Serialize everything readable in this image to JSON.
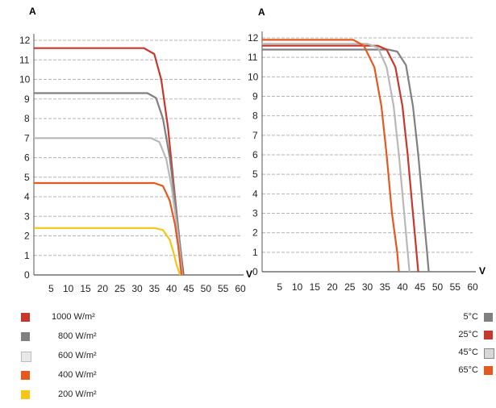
{
  "chart_data": [
    {
      "type": "line",
      "title": "",
      "y_axis_letter": "A",
      "x_axis_letter": "V",
      "xlim": [
        0,
        60
      ],
      "ylim": [
        0,
        12
      ],
      "x_ticks": [
        "5",
        "10",
        "15",
        "20",
        "25",
        "30",
        "35",
        "40",
        "45",
        "50",
        "55",
        "60"
      ],
      "y_ticks": [
        "0",
        "1",
        "2",
        "3",
        "4",
        "5",
        "6",
        "7",
        "8",
        "9",
        "10",
        "11",
        "12"
      ],
      "grid": "horizontal dashed",
      "series": [
        {
          "name": "1000 W/m²",
          "color": "#c8372d",
          "isc": 11.6,
          "points": [
            [
              0,
              11.6
            ],
            [
              32,
              11.6
            ],
            [
              35,
              11.3
            ],
            [
              37,
              10
            ],
            [
              39,
              7.5
            ],
            [
              41,
              4
            ],
            [
              42.5,
              1.5
            ],
            [
              43.5,
              0
            ]
          ]
        },
        {
          "name": "800 W/m²",
          "color": "#808080",
          "isc": 9.3,
          "points": [
            [
              0,
              9.3
            ],
            [
              33,
              9.3
            ],
            [
              35.5,
              9.05
            ],
            [
              37.5,
              8
            ],
            [
              39.5,
              6
            ],
            [
              41,
              3.8
            ],
            [
              42.5,
              1.5
            ],
            [
              43.3,
              0
            ]
          ]
        },
        {
          "name": "600 W/m²",
          "color": "#b8b8b8",
          "isc": 7.0,
          "points": [
            [
              0,
              7.0
            ],
            [
              34,
              7.0
            ],
            [
              36.5,
              6.8
            ],
            [
              38.5,
              5.9
            ],
            [
              40,
              4.5
            ],
            [
              41.5,
              2.6
            ],
            [
              42.5,
              1.1
            ],
            [
              43.1,
              0
            ]
          ]
        },
        {
          "name": "400 W/m²",
          "color": "#e3591e",
          "isc": 4.7,
          "points": [
            [
              0,
              4.7
            ],
            [
              35,
              4.7
            ],
            [
              37.5,
              4.55
            ],
            [
              39.5,
              3.8
            ],
            [
              41,
              2.6
            ],
            [
              42,
              1.4
            ],
            [
              42.9,
              0
            ]
          ]
        },
        {
          "name": "200 W/m²",
          "color": "#f5c518",
          "isc": 2.4,
          "points": [
            [
              0,
              2.4
            ],
            [
              35,
              2.4
            ],
            [
              37.5,
              2.3
            ],
            [
              39.5,
              1.8
            ],
            [
              40.5,
              1.2
            ],
            [
              41.5,
              0.5
            ],
            [
              42.5,
              0
            ]
          ]
        }
      ]
    },
    {
      "type": "line",
      "title": "",
      "y_axis_letter": "A",
      "x_axis_letter": "V",
      "xlim": [
        0,
        60
      ],
      "ylim": [
        0,
        12
      ],
      "x_ticks": [
        "5",
        "10",
        "15",
        "20",
        "25",
        "30",
        "35",
        "40",
        "45",
        "50",
        "55",
        "60"
      ],
      "y_ticks": [
        "0",
        "1",
        "2",
        "3",
        "4",
        "5",
        "6",
        "7",
        "8",
        "9",
        "10",
        "11",
        "12"
      ],
      "grid": "horizontal dashed",
      "series": [
        {
          "name": "5°C",
          "color": "#808080",
          "points": [
            [
              0,
              11.4
            ],
            [
              36,
              11.4
            ],
            [
              38.5,
              11.3
            ],
            [
              41,
              10.6
            ],
            [
              43,
              8.5
            ],
            [
              44.5,
              6
            ],
            [
              46,
              3
            ],
            [
              47,
              1
            ],
            [
              47.5,
              0
            ]
          ]
        },
        {
          "name": "25°C",
          "color": "#c8372d",
          "points": [
            [
              0,
              11.6
            ],
            [
              33,
              11.6
            ],
            [
              35.5,
              11.4
            ],
            [
              38,
              10.5
            ],
            [
              40,
              8.5
            ],
            [
              41.5,
              6
            ],
            [
              43,
              3
            ],
            [
              44,
              1
            ],
            [
              44.5,
              0
            ]
          ]
        },
        {
          "name": "45°C",
          "color": "#b8b8b8",
          "points": [
            [
              0,
              11.7
            ],
            [
              30,
              11.7
            ],
            [
              33,
              11.5
            ],
            [
              35.5,
              10.5
            ],
            [
              37.5,
              8.5
            ],
            [
              39,
              6
            ],
            [
              40.5,
              3
            ],
            [
              41.5,
              1
            ],
            [
              42,
              0
            ]
          ]
        },
        {
          "name": "65°C",
          "color": "#e3591e",
          "points": [
            [
              0,
              11.9
            ],
            [
              26,
              11.9
            ],
            [
              29,
              11.6
            ],
            [
              32,
              10.5
            ],
            [
              34,
              8.5
            ],
            [
              35.5,
              6
            ],
            [
              37,
              3
            ],
            [
              38.5,
              1
            ],
            [
              39,
              0
            ]
          ]
        }
      ]
    }
  ],
  "legend_left": [
    {
      "label": "1000 W/m²",
      "color": "#c8372d"
    },
    {
      "label": "800 W/m²",
      "color": "#808080"
    },
    {
      "label": "600 W/m²",
      "color": "#e8e8e8"
    },
    {
      "label": "400 W/m²",
      "color": "#e3591e"
    },
    {
      "label": "200 W/m²",
      "color": "#f5c518"
    }
  ],
  "legend_right": [
    {
      "label": "5°C",
      "color": "#808080"
    },
    {
      "label": "25°C",
      "color": "#c8372d"
    },
    {
      "label": "45°C",
      "color": "#d8d8d8"
    },
    {
      "label": "65°C",
      "color": "#e3591e"
    }
  ]
}
